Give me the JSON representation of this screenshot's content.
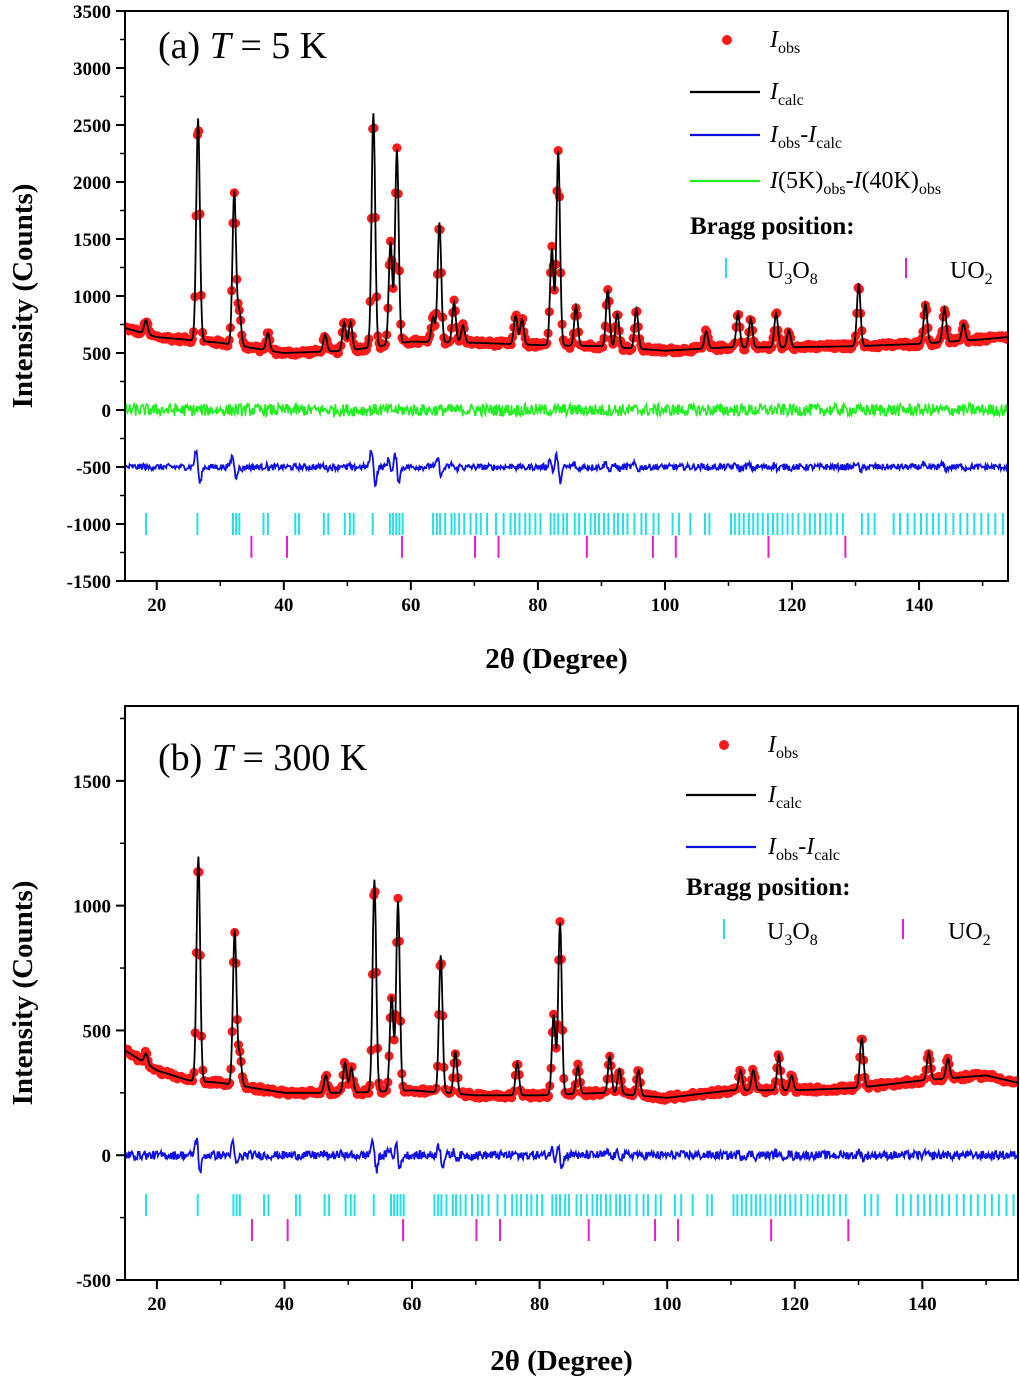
{
  "chart_data": [
    {
      "type": "line",
      "panel_label": "(a)",
      "temperature_label": "T = 5 K",
      "xlabel": "2θ (Degree)",
      "ylabel": "Intensity (Counts)",
      "xlim": [
        15,
        154
      ],
      "ylim": [
        -1500,
        3500
      ],
      "xticks": [
        20,
        40,
        60,
        80,
        100,
        120,
        140
      ],
      "yticks": [
        -1500,
        -1000,
        -500,
        0,
        500,
        1000,
        1500,
        2000,
        2500,
        3000,
        3500
      ],
      "legend_position": "top-right",
      "series": [
        {
          "name": "I_obs",
          "label_main": "I",
          "label_sub": "obs",
          "style": "markers",
          "color": "#ff1a1a"
        },
        {
          "name": "I_calc",
          "label_main": "I",
          "label_sub": "calc",
          "style": "line",
          "color": "#000000"
        },
        {
          "name": "I_obs-I_calc",
          "label_main": "I",
          "label_sub": "obs",
          "label_main2": "-I",
          "label_sub2": "calc",
          "style": "line",
          "color": "#1010e0",
          "offset": -500
        },
        {
          "name": "I(5K)_obs-I(40K)_obs",
          "label_main": "I",
          "label_rest": "(5K)",
          "label_sub": "obs",
          "label_main2": "-I",
          "label_rest2": "(40K)",
          "label_sub2": "obs",
          "style": "line",
          "color": "#22ee22",
          "offset": 0
        }
      ],
      "background": {
        "x": [
          15,
          20,
          30,
          40,
          50,
          60,
          70,
          80,
          90,
          100,
          110,
          120,
          130,
          140,
          150,
          154
        ],
        "y": [
          720,
          640,
          590,
          500,
          520,
          600,
          590,
          570,
          560,
          520,
          550,
          550,
          560,
          580,
          620,
          640
        ]
      },
      "peaks": [
        {
          "x": 18.3,
          "h": 120
        },
        {
          "x": 26.5,
          "h": 1950
        },
        {
          "x": 32.2,
          "h": 1350
        },
        {
          "x": 33.0,
          "h": 300
        },
        {
          "x": 37.5,
          "h": 150
        },
        {
          "x": 46.5,
          "h": 150
        },
        {
          "x": 49.5,
          "h": 250
        },
        {
          "x": 50.5,
          "h": 250
        },
        {
          "x": 54.1,
          "h": 2050
        },
        {
          "x": 56.8,
          "h": 900
        },
        {
          "x": 57.8,
          "h": 1700
        },
        {
          "x": 63.5,
          "h": 220
        },
        {
          "x": 64.5,
          "h": 1050
        },
        {
          "x": 66.8,
          "h": 350
        },
        {
          "x": 68.2,
          "h": 150
        },
        {
          "x": 76.5,
          "h": 250
        },
        {
          "x": 77.5,
          "h": 220
        },
        {
          "x": 82.2,
          "h": 850
        },
        {
          "x": 83.2,
          "h": 1700
        },
        {
          "x": 86.0,
          "h": 350
        },
        {
          "x": 91.0,
          "h": 500
        },
        {
          "x": 92.5,
          "h": 300
        },
        {
          "x": 95.5,
          "h": 350
        },
        {
          "x": 106.5,
          "h": 150
        },
        {
          "x": 111.5,
          "h": 300
        },
        {
          "x": 113.5,
          "h": 250
        },
        {
          "x": 117.5,
          "h": 300
        },
        {
          "x": 119.5,
          "h": 150
        },
        {
          "x": 130.5,
          "h": 550
        },
        {
          "x": 141.0,
          "h": 350
        },
        {
          "x": 144.0,
          "h": 300
        },
        {
          "x": 147.0,
          "h": 150
        }
      ],
      "bragg": {
        "title": "Bragg position:",
        "phases": [
          {
            "name": "U3O8",
            "label_parts": [
              "U",
              "3",
              "O",
              "8"
            ],
            "color": "#22e0e6",
            "y": -1000,
            "positions": [
              18.3,
              26.4,
              32.0,
              32.5,
              33.0,
              36.8,
              37.5,
              41.8,
              42.4,
              46.3,
              47.0,
              49.6,
              50.4,
              51.0,
              54.0,
              56.7,
              57.2,
              57.7,
              58.2,
              58.7,
              63.5,
              64.1,
              64.6,
              65.4,
              66.4,
              66.9,
              67.6,
              68.4,
              69.4,
              70.3,
              71.0,
              72.0,
              73.4,
              74.6,
              75.7,
              76.4,
              77.1,
              78.0,
              78.7,
              79.6,
              80.4,
              82.0,
              82.6,
              83.2,
              84.0,
              84.6,
              85.8,
              86.5,
              87.4,
              88.3,
              89.0,
              89.6,
              90.4,
              91.1,
              92.0,
              92.6,
              93.4,
              94.1,
              95.2,
              96.3,
              97.0,
              98.2,
              99.0,
              101.2,
              102.2,
              104.0,
              106.3,
              107.0,
              110.4,
              111.0,
              111.7,
              112.4,
              113.2,
              113.9,
              114.6,
              115.4,
              116.2,
              117.0,
              117.7,
              118.5,
              119.3,
              120.1,
              121.0,
              122.0,
              122.8,
              123.6,
              124.4,
              125.3,
              126.1,
              127.1,
              128.0,
              131.0,
              132.0,
              133.0,
              136.0,
              137.0,
              138.2,
              139.3,
              140.3,
              141.2,
              142.2,
              143.1,
              144.2,
              145.4,
              146.5,
              147.6,
              148.7,
              149.8,
              150.9,
              152.0,
              153.2
            ]
          },
          {
            "name": "UO2",
            "label_parts": [
              "UO",
              "2"
            ],
            "color": "#e61ecc",
            "y": -1200,
            "positions": [
              34.9,
              40.5,
              58.6,
              70.1,
              73.8,
              87.7,
              98.1,
              101.7,
              116.3,
              128.4
            ]
          }
        ]
      }
    },
    {
      "type": "line",
      "panel_label": "(b)",
      "temperature_label": "T = 300 K",
      "xlabel": "2θ (Degree)",
      "ylabel": "Intensity (Counts)",
      "xlim": [
        15,
        155
      ],
      "ylim": [
        -500,
        1800
      ],
      "xticks": [
        20,
        40,
        60,
        80,
        100,
        120,
        140
      ],
      "yticks": [
        -500,
        0,
        500,
        1000,
        1500
      ],
      "legend_position": "top-right",
      "series": [
        {
          "name": "I_obs",
          "label_main": "I",
          "label_sub": "obs",
          "style": "markers",
          "color": "#ff1a1a"
        },
        {
          "name": "I_calc",
          "label_main": "I",
          "label_sub": "calc",
          "style": "line",
          "color": "#000000"
        },
        {
          "name": "I_obs-I_calc",
          "label_main": "I",
          "label_sub": "obs",
          "label_main2": "-I",
          "label_sub2": "calc",
          "style": "line",
          "color": "#1010e0",
          "offset": 0
        }
      ],
      "background": {
        "x": [
          15,
          20,
          25,
          30,
          40,
          50,
          60,
          70,
          80,
          90,
          100,
          110,
          120,
          130,
          140,
          150,
          155
        ],
        "y": [
          420,
          340,
          300,
          290,
          250,
          250,
          260,
          240,
          240,
          250,
          230,
          260,
          260,
          270,
          300,
          320,
          290
        ]
      },
      "peaks": [
        {
          "x": 18.3,
          "h": 40
        },
        {
          "x": 26.5,
          "h": 900
        },
        {
          "x": 32.2,
          "h": 620
        },
        {
          "x": 33.0,
          "h": 120
        },
        {
          "x": 46.5,
          "h": 70
        },
        {
          "x": 49.5,
          "h": 120
        },
        {
          "x": 50.5,
          "h": 100
        },
        {
          "x": 54.1,
          "h": 850
        },
        {
          "x": 56.8,
          "h": 380
        },
        {
          "x": 57.8,
          "h": 760
        },
        {
          "x": 64.5,
          "h": 550
        },
        {
          "x": 66.8,
          "h": 170
        },
        {
          "x": 76.5,
          "h": 130
        },
        {
          "x": 82.2,
          "h": 320
        },
        {
          "x": 83.2,
          "h": 690
        },
        {
          "x": 86.0,
          "h": 110
        },
        {
          "x": 91.0,
          "h": 150
        },
        {
          "x": 92.5,
          "h": 100
        },
        {
          "x": 95.5,
          "h": 100
        },
        {
          "x": 111.5,
          "h": 80
        },
        {
          "x": 113.5,
          "h": 80
        },
        {
          "x": 117.5,
          "h": 140
        },
        {
          "x": 119.5,
          "h": 60
        },
        {
          "x": 130.5,
          "h": 200
        },
        {
          "x": 141.0,
          "h": 110
        },
        {
          "x": 144.0,
          "h": 80
        }
      ],
      "bragg": {
        "title": "Bragg position:",
        "phases": [
          {
            "name": "U3O8",
            "label_parts": [
              "U",
              "3",
              "O",
              "8"
            ],
            "color": "#22e0e6",
            "y": -200,
            "positions": [
              18.3,
              26.4,
              32.0,
              32.5,
              33.0,
              36.8,
              37.5,
              41.8,
              42.4,
              46.3,
              47.0,
              49.6,
              50.4,
              51.0,
              54.0,
              56.7,
              57.2,
              57.7,
              58.2,
              58.7,
              63.5,
              64.1,
              64.6,
              65.4,
              66.4,
              66.9,
              67.6,
              68.4,
              69.4,
              70.3,
              71.0,
              72.0,
              73.4,
              74.6,
              75.7,
              76.4,
              77.1,
              78.0,
              78.7,
              79.6,
              80.4,
              82.0,
              82.6,
              83.2,
              84.0,
              84.6,
              85.8,
              86.5,
              87.4,
              88.3,
              89.0,
              89.6,
              90.4,
              91.1,
              92.0,
              92.6,
              93.4,
              94.1,
              95.2,
              96.3,
              97.0,
              98.2,
              99.0,
              101.2,
              102.2,
              104.0,
              106.3,
              107.0,
              110.4,
              111.0,
              111.7,
              112.4,
              113.2,
              113.9,
              114.6,
              115.4,
              116.2,
              117.0,
              117.7,
              118.5,
              119.3,
              120.1,
              121.0,
              122.0,
              122.8,
              123.6,
              124.4,
              125.3,
              126.1,
              127.1,
              128.0,
              131.0,
              132.0,
              133.0,
              136.0,
              137.0,
              138.2,
              139.3,
              140.3,
              141.2,
              142.2,
              143.1,
              144.2,
              145.4,
              146.5,
              147.6,
              148.7,
              149.8,
              150.9,
              152.0,
              153.2,
              154.3
            ]
          },
          {
            "name": "UO2",
            "label_parts": [
              "UO",
              "2"
            ],
            "color": "#e61ecc",
            "y": -300,
            "positions": [
              34.9,
              40.5,
              58.6,
              70.1,
              73.8,
              87.7,
              98.1,
              101.7,
              116.3,
              128.4
            ]
          }
        ]
      }
    }
  ]
}
